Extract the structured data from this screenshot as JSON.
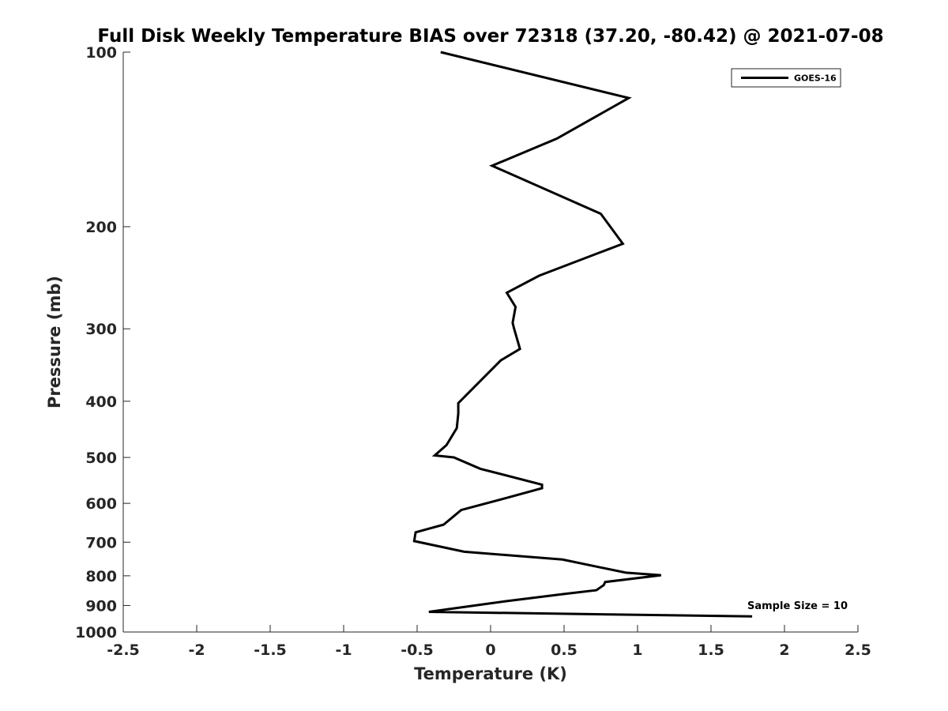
{
  "chart_data": {
    "type": "line",
    "title": "Full Disk Weekly Temperature BIAS over 72318 (37.20, -80.42) @ 2021-07-08",
    "xlabel": "Temperature (K)",
    "ylabel": "Pressure (mb)",
    "xlim": [
      -2.5,
      2.5
    ],
    "ylim": [
      100,
      1000
    ],
    "y_scale": "log",
    "y_reversed": true,
    "grid": false,
    "legend_position": "top-right",
    "x_ticks": [
      "-2.5",
      "-2",
      "-1.5",
      "-1",
      "-0.5",
      "0",
      "0.5",
      "1",
      "1.5",
      "2",
      "2.5"
    ],
    "y_ticks": [
      "100",
      "200",
      "300",
      "400",
      "500",
      "600",
      "700",
      "800",
      "900",
      "1000"
    ],
    "annotation": "Sample Size = 10",
    "series": [
      {
        "name": "GOES-16",
        "color": "#000000",
        "x": [
          -0.34,
          0.94,
          0.45,
          0.01,
          0.75,
          0.75,
          0.9,
          0.33,
          0.11,
          0.17,
          0.15,
          0.16,
          0.2,
          0.07,
          -0.12,
          -0.22,
          -0.22,
          -0.23,
          -0.3,
          -0.38,
          -0.25,
          -0.07,
          0.35,
          0.35,
          0.11,
          -0.2,
          -0.32,
          -0.51,
          -0.52,
          -0.18,
          0.49,
          0.92,
          1.16,
          0.78,
          0.77,
          0.72,
          0.5,
          0.1,
          -0.42,
          1.78
        ],
        "y": [
          100,
          120,
          141,
          157,
          190,
          190,
          214,
          243,
          260,
          275,
          293,
          300,
          325,
          340,
          380,
          403,
          420,
          445,
          476,
          496,
          500,
          523,
          557,
          565,
          587,
          616,
          653,
          673,
          697,
          727,
          750,
          790,
          798,
          820,
          830,
          847,
          860,
          885,
          923,
          940
        ]
      }
    ]
  }
}
